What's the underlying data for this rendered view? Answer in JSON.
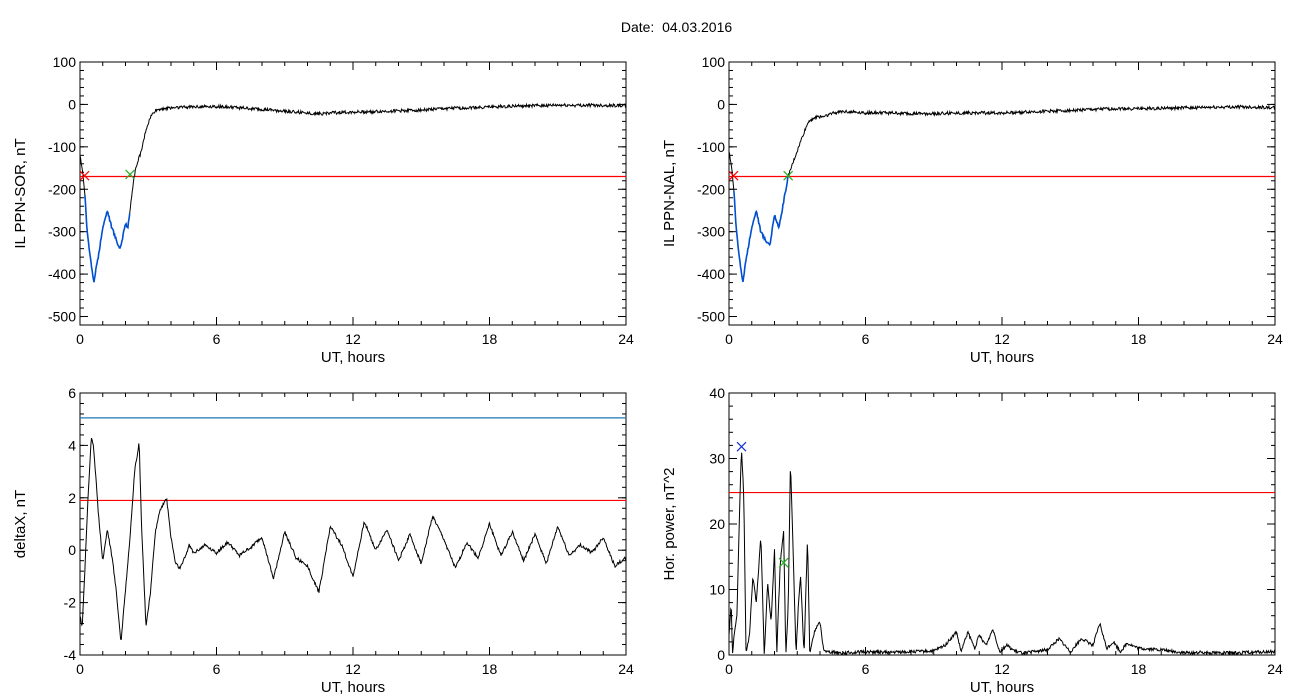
{
  "header": {
    "date_label": "Date:  04.03.2016"
  },
  "colors": {
    "trace": "#000000",
    "threshold": "#ff0000",
    "upper_line": "#1f77b4",
    "highlight": "#0050d0",
    "marker_green": "#22b022",
    "marker_blue": "#1030d0"
  },
  "chart_data": [
    {
      "id": "il-sor",
      "type": "line",
      "ylabel": "IL PPN-SOR, nT",
      "xlabel": "UT, hours",
      "xlim": [
        0,
        24
      ],
      "ylim": [
        -520,
        100
      ],
      "xticks": [
        0,
        6,
        12,
        18,
        24
      ],
      "yticks": [
        100,
        0,
        -100,
        -200,
        -300,
        -400,
        -500
      ],
      "threshold": -170,
      "highlight_range": [
        0.2,
        2.2
      ],
      "markers": [
        {
          "x": 0.2,
          "y": -168,
          "color": "red"
        },
        {
          "x": 2.2,
          "y": -165,
          "color": "green"
        }
      ],
      "series": [
        {
          "x": [
            0,
            0.1,
            0.2,
            0.3,
            0.45,
            0.6,
            0.8,
            1.0,
            1.2,
            1.4,
            1.6,
            1.75,
            1.85,
            2.0,
            2.1,
            2.2,
            2.35,
            2.5,
            2.7,
            2.9,
            3.1,
            3.3,
            3.6,
            4,
            5,
            6,
            7,
            8,
            9,
            10,
            10.5,
            11,
            12,
            13,
            14,
            15,
            16,
            17,
            18,
            19,
            20,
            21,
            22,
            23,
            24
          ],
          "y": [
            -120,
            -150,
            -200,
            -290,
            -360,
            -420,
            -360,
            -290,
            -250,
            -290,
            -320,
            -340,
            -320,
            -280,
            -290,
            -250,
            -180,
            -140,
            -110,
            -60,
            -30,
            -15,
            -10,
            -8,
            -5,
            -5,
            -8,
            -12,
            -16,
            -20,
            -22,
            -20,
            -18,
            -17,
            -15,
            -13,
            -10,
            -8,
            -6,
            -4,
            -3,
            -2,
            -2,
            -2,
            -3
          ]
        }
      ]
    },
    {
      "id": "il-nal",
      "type": "line",
      "ylabel": "IL PPN-NAL, nT",
      "xlabel": "UT, hours",
      "xlim": [
        0,
        24
      ],
      "ylim": [
        -520,
        100
      ],
      "xticks": [
        0,
        6,
        12,
        18,
        24
      ],
      "yticks": [
        100,
        0,
        -100,
        -200,
        -300,
        -400,
        -500
      ],
      "threshold": -170,
      "highlight_range": [
        0.2,
        2.6
      ],
      "markers": [
        {
          "x": 0.2,
          "y": -168,
          "color": "red"
        },
        {
          "x": 2.6,
          "y": -168,
          "color": "green"
        }
      ],
      "series": [
        {
          "x": [
            0,
            0.1,
            0.2,
            0.3,
            0.45,
            0.6,
            0.8,
            1.0,
            1.2,
            1.4,
            1.6,
            1.8,
            2.0,
            2.2,
            2.4,
            2.6,
            2.8,
            3.0,
            3.2,
            3.5,
            3.8,
            4.2,
            4.6,
            5,
            6,
            7,
            8,
            9,
            10,
            11,
            12,
            13,
            14,
            15,
            16,
            17,
            18,
            19,
            20,
            21,
            22,
            23,
            24
          ],
          "y": [
            -110,
            -140,
            -190,
            -280,
            -360,
            -420,
            -350,
            -290,
            -250,
            -300,
            -320,
            -330,
            -260,
            -290,
            -230,
            -170,
            -140,
            -110,
            -80,
            -40,
            -30,
            -28,
            -20,
            -16,
            -20,
            -20,
            -22,
            -22,
            -20,
            -20,
            -20,
            -18,
            -16,
            -14,
            -12,
            -10,
            -10,
            -9,
            -8,
            -7,
            -6,
            -6,
            -8
          ]
        }
      ]
    },
    {
      "id": "deltax",
      "type": "line",
      "ylabel": "deltaX, nT",
      "xlabel": "UT, hours",
      "xlim": [
        0,
        24
      ],
      "ylim": [
        -4,
        6
      ],
      "xticks": [
        0,
        6,
        12,
        18,
        24
      ],
      "yticks": [
        6,
        4,
        2,
        0,
        -2,
        -4
      ],
      "threshold": 1.9,
      "upper_line": 5.05,
      "markers": [],
      "series": [
        {
          "x": [
            0,
            0.1,
            0.2,
            0.35,
            0.5,
            0.6,
            0.8,
            1.0,
            1.2,
            1.4,
            1.6,
            1.8,
            2.0,
            2.2,
            2.4,
            2.6,
            2.7,
            2.9,
            3.1,
            3.3,
            3.5,
            3.8,
            4.0,
            4.2,
            4.4,
            4.6,
            4.8,
            5.0,
            5.5,
            6.0,
            6.5,
            7.0,
            7.5,
            8.0,
            8.5,
            9.0,
            9.5,
            10.0,
            10.5,
            11.0,
            11.5,
            12.0,
            12.5,
            13.0,
            13.5,
            14.0,
            14.5,
            15.0,
            15.5,
            16.0,
            16.5,
            17.0,
            17.5,
            18.0,
            18.5,
            19.0,
            19.5,
            20.0,
            20.5,
            21.0,
            21.5,
            22.0,
            22.5,
            23.0,
            23.5,
            24.0
          ],
          "y": [
            -2.5,
            -2.9,
            -1.0,
            2.0,
            4.3,
            3.9,
            1.5,
            -0.4,
            0.8,
            -0.2,
            -1.6,
            -3.5,
            -1.5,
            0.5,
            3.0,
            4.1,
            1.0,
            -2.9,
            -1.6,
            0.6,
            1.5,
            2.0,
            0.5,
            -0.5,
            -0.7,
            -0.3,
            0.2,
            -0.1,
            0.2,
            -0.1,
            0.3,
            -0.2,
            0.1,
            0.5,
            -1.1,
            0.7,
            -0.3,
            -0.6,
            -1.6,
            0.9,
            0.2,
            -1.0,
            1.1,
            0.0,
            0.8,
            -0.4,
            0.6,
            -0.5,
            1.3,
            0.4,
            -0.7,
            0.3,
            -0.3,
            1.0,
            -0.2,
            0.7,
            -0.4,
            0.6,
            -0.5,
            0.9,
            -0.2,
            0.2,
            -0.1,
            0.5,
            -0.6,
            -0.3
          ]
        }
      ]
    },
    {
      "id": "hor-power",
      "type": "line",
      "ylabel": "Hor. power, nT^2",
      "xlabel": "UT, hours",
      "xlim": [
        0,
        24
      ],
      "ylim": [
        0,
        40
      ],
      "xticks": [
        0,
        6,
        12,
        18,
        24
      ],
      "yticks": [
        40,
        30,
        20,
        10,
        0
      ],
      "threshold": 24.8,
      "markers": [
        {
          "x": 0.55,
          "y": 31.8,
          "color": "blue"
        },
        {
          "x": 2.4,
          "y": 14.1,
          "color": "green"
        }
      ],
      "series": [
        {
          "x": [
            0,
            0.1,
            0.15,
            0.25,
            0.35,
            0.45,
            0.55,
            0.65,
            0.75,
            0.9,
            1.05,
            1.2,
            1.4,
            1.55,
            1.7,
            1.85,
            2.0,
            2.1,
            2.25,
            2.4,
            2.5,
            2.6,
            2.7,
            2.8,
            2.95,
            3.05,
            3.15,
            3.3,
            3.45,
            3.55,
            3.65,
            3.8,
            4.0,
            4.15,
            4.3,
            4.5,
            5,
            6,
            7,
            8,
            9,
            9.5,
            10.0,
            10.2,
            10.5,
            10.8,
            11.0,
            11.3,
            11.6,
            11.9,
            12.2,
            12.6,
            13,
            14,
            14.5,
            15,
            15.5,
            16.0,
            16.3,
            16.6,
            16.9,
            17.2,
            17.5,
            18,
            19,
            20,
            21,
            22,
            23,
            24
          ],
          "y": [
            3,
            8,
            0,
            4,
            6,
            20,
            31.8,
            24,
            0,
            3,
            12,
            8,
            18,
            0,
            11,
            5,
            16,
            0,
            14.1,
            19,
            0,
            7,
            29.5,
            18,
            0,
            8,
            12,
            0,
            18,
            0,
            2,
            4,
            5,
            1,
            0.5,
            0.5,
            0.3,
            0.5,
            0.4,
            0.5,
            0.6,
            1.5,
            3.5,
            0.5,
            3.5,
            1,
            3,
            1.5,
            4,
            0.5,
            1.5,
            0.5,
            0.3,
            0.8,
            2.5,
            0.5,
            2.5,
            1.5,
            4.8,
            1,
            2,
            0.5,
            1.8,
            1,
            0.8,
            0.3,
            0.4,
            0.3,
            0.4,
            0.5
          ]
        }
      ]
    }
  ]
}
